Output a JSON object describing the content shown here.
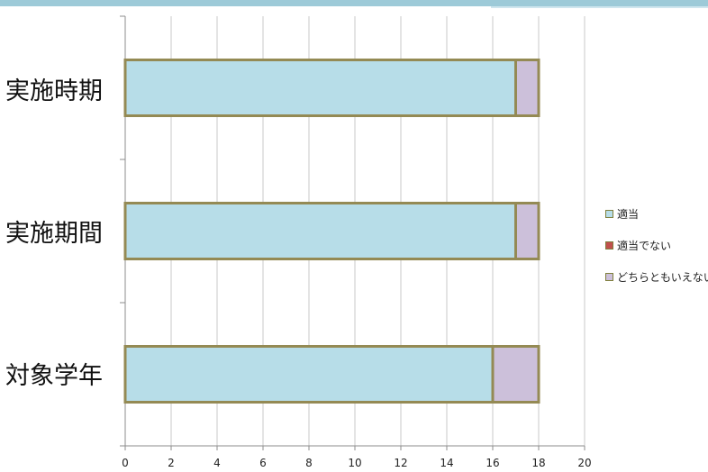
{
  "chart_data": {
    "type": "bar",
    "orientation": "horizontal",
    "stacked": true,
    "categories": [
      "実施時期",
      "実施期間",
      "対象学年"
    ],
    "series": [
      {
        "name": "適当",
        "values": [
          17,
          17,
          16
        ],
        "color": "#b7dde8"
      },
      {
        "name": "適当でない",
        "values": [
          0,
          0,
          0
        ],
        "color": "#c0504d"
      },
      {
        "name": "どちらともいえない",
        "values": [
          1,
          1,
          2
        ],
        "color": "#ccc0da"
      }
    ],
    "bar_edge_color": "#948a54",
    "xlim": [
      0,
      20
    ],
    "xticks": [
      "0",
      "2",
      "4",
      "6",
      "8",
      "10",
      "12",
      "14",
      "16",
      "18",
      "20"
    ],
    "grid": "vertical",
    "legend_position": "right",
    "title": "",
    "xlabel": "",
    "ylabel": ""
  }
}
